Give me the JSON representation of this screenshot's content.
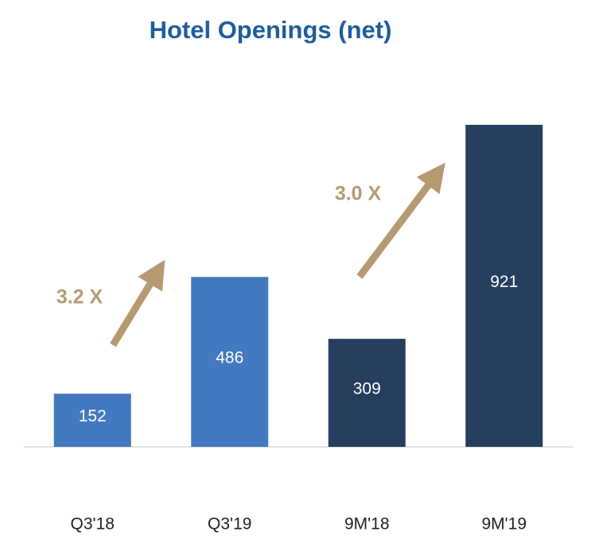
{
  "chart_data": {
    "type": "bar",
    "title": "Hotel Openings (net)",
    "categories": [
      "Q3'18",
      "Q3'19",
      "9M'18",
      "9M'19"
    ],
    "values": [
      152,
      486,
      309,
      921
    ],
    "colors": [
      "#4279bf",
      "#4279bf",
      "#263f5f",
      "#263f5f"
    ],
    "annotations": [
      "3.2 X",
      "3.0 X"
    ]
  }
}
